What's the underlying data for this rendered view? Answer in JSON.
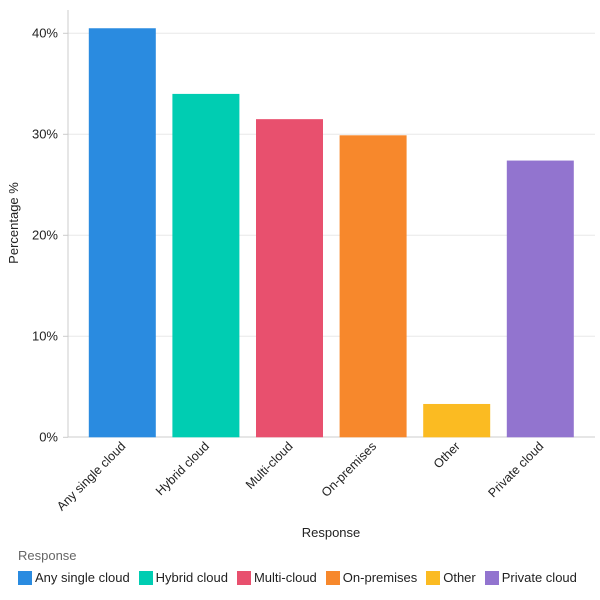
{
  "chart_data": {
    "type": "bar",
    "categories": [
      "Any single cloud",
      "Hybrid cloud",
      "Multi-cloud",
      "On-premises",
      "Other",
      "Private cloud"
    ],
    "values": [
      40.5,
      34.0,
      31.5,
      29.9,
      3.3,
      27.4
    ],
    "colors": [
      "#2a8be0",
      "#00cdb2",
      "#e8506e",
      "#f7882c",
      "#fbbb22",
      "#9274cf"
    ],
    "xlabel": "Response",
    "ylabel": "Percentage %",
    "ylim": [
      0,
      42.5
    ],
    "yticks": [
      0,
      10,
      20,
      30,
      40
    ],
    "ytick_labels": [
      "0%",
      "10%",
      "20%",
      "30%",
      "40%"
    ],
    "grid": true,
    "legend": {
      "title": "Response",
      "position": "bottom-left"
    }
  }
}
